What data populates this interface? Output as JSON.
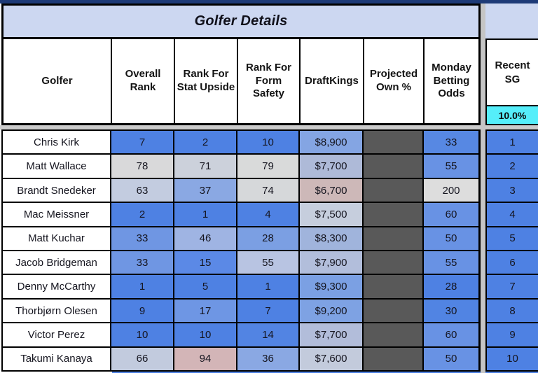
{
  "title": "Golfer Details",
  "table": {
    "columns": [
      {
        "key": "golfer",
        "label": "Golfer"
      },
      {
        "key": "overall-rank",
        "label": "Overall Rank"
      },
      {
        "key": "rank-stat-upside",
        "label": "Rank For Stat Upside"
      },
      {
        "key": "rank-form-safety",
        "label": "Rank For Form Safety"
      },
      {
        "key": "draftkings",
        "label": "DraftKings"
      },
      {
        "key": "projected-own",
        "label": "Projected Own %"
      },
      {
        "key": "monday-betting-odds",
        "label": "Monday Betting Odds"
      }
    ],
    "rows": [
      {
        "golfer": "Chris Kirk",
        "cells": [
          {
            "v": "7",
            "bg": "#4e81e3"
          },
          {
            "v": "2",
            "bg": "#4e81e3"
          },
          {
            "v": "10",
            "bg": "#4e81e3"
          },
          {
            "v": "$8,900",
            "bg": "#84a5e3"
          },
          {
            "v": "",
            "bg": "#595959"
          },
          {
            "v": "33",
            "bg": "#5788e3"
          }
        ]
      },
      {
        "golfer": "Matt Wallace",
        "cells": [
          {
            "v": "78",
            "bg": "#d9d9da"
          },
          {
            "v": "71",
            "bg": "#ccd1db"
          },
          {
            "v": "79",
            "bg": "#d9dada"
          },
          {
            "v": "$7,700",
            "bg": "#aebad8"
          },
          {
            "v": "",
            "bg": "#595959"
          },
          {
            "v": "55",
            "bg": "#6892e4"
          }
        ]
      },
      {
        "golfer": "Brandt Snedeker",
        "cells": [
          {
            "v": "63",
            "bg": "#c3cce0"
          },
          {
            "v": "37",
            "bg": "#8aa8e3"
          },
          {
            "v": "74",
            "bg": "#d6d8da"
          },
          {
            "v": "$6,700",
            "bg": "#cdb8b8"
          },
          {
            "v": "",
            "bg": "#595959"
          },
          {
            "v": "200",
            "bg": "#dddddd"
          }
        ]
      },
      {
        "golfer": "Mac Meissner",
        "cells": [
          {
            "v": "2",
            "bg": "#4e81e3"
          },
          {
            "v": "1",
            "bg": "#4e81e3"
          },
          {
            "v": "4",
            "bg": "#4e81e3"
          },
          {
            "v": "$7,500",
            "bg": "#c6cedd"
          },
          {
            "v": "",
            "bg": "#595959"
          },
          {
            "v": "60",
            "bg": "#6892e4"
          }
        ]
      },
      {
        "golfer": "Matt Kuchar",
        "cells": [
          {
            "v": "33",
            "bg": "#6f96e3"
          },
          {
            "v": "46",
            "bg": "#9fb4e3"
          },
          {
            "v": "28",
            "bg": "#7b9fe3"
          },
          {
            "v": "$8,300",
            "bg": "#a0b4dc"
          },
          {
            "v": "",
            "bg": "#595959"
          },
          {
            "v": "50",
            "bg": "#6892e4"
          }
        ]
      },
      {
        "golfer": "Jacob Bridgeman",
        "cells": [
          {
            "v": "33",
            "bg": "#6f96e3"
          },
          {
            "v": "15",
            "bg": "#5b89e6"
          },
          {
            "v": "55",
            "bg": "#b8c4e2"
          },
          {
            "v": "$7,900",
            "bg": "#b2bedb"
          },
          {
            "v": "",
            "bg": "#595959"
          },
          {
            "v": "55",
            "bg": "#6892e4"
          }
        ]
      },
      {
        "golfer": "Denny McCarthy",
        "cells": [
          {
            "v": "1",
            "bg": "#4e81e3"
          },
          {
            "v": "5",
            "bg": "#4e81e3"
          },
          {
            "v": "1",
            "bg": "#4e81e3"
          },
          {
            "v": "$9,300",
            "bg": "#7ba0e3"
          },
          {
            "v": "",
            "bg": "#595959"
          },
          {
            "v": "28",
            "bg": "#4e81e3"
          }
        ]
      },
      {
        "golfer": "Thorbjørn Olesen",
        "cells": [
          {
            "v": "9",
            "bg": "#4e81e3"
          },
          {
            "v": "17",
            "bg": "#6e96e4"
          },
          {
            "v": "7",
            "bg": "#4e81e3"
          },
          {
            "v": "$9,200",
            "bg": "#7ea2e3"
          },
          {
            "v": "",
            "bg": "#595959"
          },
          {
            "v": "30",
            "bg": "#5184e3"
          }
        ]
      },
      {
        "golfer": "Victor Perez",
        "cells": [
          {
            "v": "10",
            "bg": "#4e81e3"
          },
          {
            "v": "10",
            "bg": "#4e81e3"
          },
          {
            "v": "14",
            "bg": "#5284e3"
          },
          {
            "v": "$7,700",
            "bg": "#b2bdda"
          },
          {
            "v": "",
            "bg": "#595959"
          },
          {
            "v": "60",
            "bg": "#6892e4"
          }
        ]
      },
      {
        "golfer": "Takumi Kanaya",
        "cells": [
          {
            "v": "66",
            "bg": "#c2cbde"
          },
          {
            "v": "94",
            "bg": "#d3b5b7"
          },
          {
            "v": "36",
            "bg": "#8aa8e3"
          },
          {
            "v": "$7,600",
            "bg": "#c3cbdc"
          },
          {
            "v": "",
            "bg": "#595959"
          },
          {
            "v": "50",
            "bg": "#6892e4"
          }
        ]
      }
    ]
  },
  "recent_sg": {
    "label": "Recent SG",
    "weight": "10.0%",
    "cells": [
      {
        "v": "1",
        "bg": "#4e81e3"
      },
      {
        "v": "2",
        "bg": "#4e81e3"
      },
      {
        "v": "3",
        "bg": "#4e81e3"
      },
      {
        "v": "4",
        "bg": "#4e81e3"
      },
      {
        "v": "5",
        "bg": "#4e81e3"
      },
      {
        "v": "6",
        "bg": "#4e81e3"
      },
      {
        "v": "7",
        "bg": "#4e81e3"
      },
      {
        "v": "8",
        "bg": "#4e81e3"
      },
      {
        "v": "9",
        "bg": "#4e81e3"
      },
      {
        "v": "10",
        "bg": "#4e81e3"
      }
    ]
  },
  "colors": {
    "title_band": "#ccd7f1",
    "top_strip": "#1d3a77",
    "weight_cell": "#55eefa",
    "own_column": "#595959",
    "rank_good_blue": "#4e81e3",
    "rank_bad_pink": "#d3b5b7",
    "gutter_gray": "#c5c5c5"
  }
}
